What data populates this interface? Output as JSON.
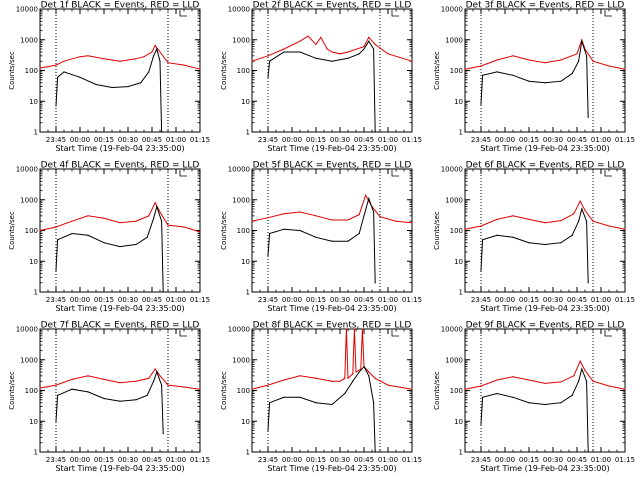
{
  "figure": {
    "background": "#ffffff",
    "colors": {
      "events": "#000000",
      "lld": "#e00000",
      "markers": "#000000"
    }
  },
  "chart_data": [
    {
      "type": "line",
      "title": "Det 1f BLACK = Events, RED = LLD",
      "xlabel": "Start Time (19-Feb-04 23:35:00)",
      "ylabel": "Counts/sec",
      "yscale": "log",
      "ylim": [
        1,
        10000
      ],
      "xlim": [
        "23:35",
        "01:15"
      ],
      "xticks": [
        "23:45",
        "00:00",
        "00:15",
        "00:30",
        "00:45",
        "01:00",
        "01:15"
      ],
      "yticks": [
        "1",
        "10",
        "100",
        "1000",
        "10000"
      ],
      "vlines": [
        "23:45",
        "00:55"
      ],
      "series": [
        {
          "name": "LLD",
          "color": "#e00000",
          "x": [
            "23:35",
            "23:45",
            "23:50",
            "00:00",
            "00:05",
            "00:15",
            "00:25",
            "00:35",
            "00:40",
            "00:45",
            "00:47",
            "00:50",
            "00:55",
            "01:05",
            "01:15"
          ],
          "y": [
            120,
            150,
            200,
            280,
            300,
            240,
            200,
            240,
            280,
            400,
            650,
            400,
            180,
            150,
            110
          ]
        },
        {
          "name": "Events",
          "color": "#000000",
          "x": [
            "23:45",
            "23:46",
            "23:50",
            "00:00",
            "00:10",
            "00:20",
            "00:30",
            "00:38",
            "00:43",
            "00:46",
            "00:48",
            "00:50",
            "00:51"
          ],
          "y": [
            7,
            60,
            90,
            60,
            35,
            28,
            30,
            40,
            90,
            300,
            500,
            200,
            1
          ]
        }
      ]
    },
    {
      "type": "line",
      "title": "Det 2f BLACK = Events, RED = LLD",
      "xlabel": "Start Time (19-Feb-04 23:35:00)",
      "ylabel": "Counts/sec",
      "yscale": "log",
      "ylim": [
        1,
        10000
      ],
      "xlim": [
        "23:35",
        "01:15"
      ],
      "xticks": [
        "23:45",
        "00:00",
        "00:15",
        "00:30",
        "00:45",
        "01:00",
        "01:15"
      ],
      "yticks": [
        "1",
        "10",
        "100",
        "1000",
        "10000"
      ],
      "vlines": [
        "23:45",
        "00:55"
      ],
      "series": [
        {
          "name": "LLD",
          "color": "#e00000",
          "x": [
            "23:35",
            "23:45",
            "23:55",
            "00:05",
            "00:10",
            "00:15",
            "00:18",
            "00:22",
            "00:25",
            "00:30",
            "00:35",
            "00:45",
            "00:48",
            "00:52",
            "01:00",
            "01:15"
          ],
          "y": [
            200,
            300,
            500,
            900,
            1300,
            700,
            1200,
            500,
            400,
            350,
            400,
            600,
            1200,
            700,
            350,
            200
          ]
        },
        {
          "name": "Events",
          "color": "#000000",
          "x": [
            "23:45",
            "23:46",
            "23:55",
            "00:05",
            "00:15",
            "00:25",
            "00:35",
            "00:42",
            "00:45",
            "00:48",
            "00:51",
            "00:52"
          ],
          "y": [
            60,
            200,
            400,
            400,
            250,
            200,
            250,
            350,
            500,
            900,
            500,
            1
          ]
        }
      ]
    },
    {
      "type": "line",
      "title": "Det 3f BLACK = Events, RED = LLD",
      "xlabel": "Start Time (19-Feb-04 23:35:00)",
      "ylabel": "Counts/sec",
      "yscale": "log",
      "ylim": [
        1,
        10000
      ],
      "xlim": [
        "23:35",
        "01:15"
      ],
      "xticks": [
        "23:45",
        "00:00",
        "00:15",
        "00:30",
        "00:45",
        "01:00",
        "01:15"
      ],
      "yticks": [
        "1",
        "10",
        "100",
        "1000",
        "10000"
      ],
      "vlines": [
        "23:45",
        "00:55"
      ],
      "series": [
        {
          "name": "LLD",
          "color": "#e00000",
          "x": [
            "23:35",
            "23:45",
            "23:55",
            "00:05",
            "00:15",
            "00:25",
            "00:35",
            "00:45",
            "00:48",
            "00:50",
            "00:55",
            "01:05",
            "01:15"
          ],
          "y": [
            110,
            140,
            220,
            300,
            220,
            180,
            220,
            350,
            1000,
            500,
            200,
            140,
            110
          ]
        },
        {
          "name": "Events",
          "color": "#000000",
          "x": [
            "23:45",
            "23:46",
            "23:55",
            "00:05",
            "00:15",
            "00:25",
            "00:35",
            "00:42",
            "00:46",
            "00:48",
            "00:51",
            "00:52"
          ],
          "y": [
            8,
            70,
            90,
            70,
            45,
            40,
            45,
            80,
            200,
            900,
            300,
            3
          ]
        }
      ]
    },
    {
      "type": "line",
      "title": "Det 4f BLACK = Events, RED = LLD",
      "xlabel": "Start Time (19-Feb-04 23:35:00)",
      "ylabel": "Counts/sec",
      "yscale": "log",
      "ylim": [
        1,
        10000
      ],
      "xlim": [
        "23:35",
        "01:15"
      ],
      "xticks": [
        "23:45",
        "00:00",
        "00:15",
        "00:30",
        "00:45",
        "01:00",
        "01:15"
      ],
      "yticks": [
        "1",
        "10",
        "100",
        "1000",
        "10000"
      ],
      "vlines": [
        "23:45",
        "00:55"
      ],
      "series": [
        {
          "name": "LLD",
          "color": "#e00000",
          "x": [
            "23:35",
            "23:45",
            "23:55",
            "00:05",
            "00:15",
            "00:25",
            "00:35",
            "00:43",
            "00:47",
            "00:50",
            "00:55",
            "01:05",
            "01:15"
          ],
          "y": [
            100,
            130,
            200,
            300,
            250,
            180,
            200,
            300,
            800,
            400,
            150,
            130,
            90
          ]
        },
        {
          "name": "Events",
          "color": "#000000",
          "x": [
            "23:45",
            "23:46",
            "23:55",
            "00:05",
            "00:15",
            "00:25",
            "00:35",
            "00:42",
            "00:46",
            "00:48",
            "00:51",
            "00:52"
          ],
          "y": [
            5,
            50,
            80,
            70,
            40,
            30,
            35,
            60,
            250,
            600,
            200,
            1
          ]
        }
      ]
    },
    {
      "type": "line",
      "title": "Det 5f BLACK = Events, RED = LLD",
      "xlabel": "Start Time (19-Feb-04 23:35:00)",
      "ylabel": "Counts/sec",
      "yscale": "log",
      "ylim": [
        1,
        10000
      ],
      "xlim": [
        "23:35",
        "01:15"
      ],
      "xticks": [
        "23:45",
        "00:00",
        "00:15",
        "00:30",
        "00:45",
        "01:00",
        "01:15"
      ],
      "yticks": [
        "1",
        "10",
        "100",
        "1000",
        "10000"
      ],
      "vlines": [
        "23:45",
        "00:55"
      ],
      "series": [
        {
          "name": "LLD",
          "color": "#e00000",
          "x": [
            "23:35",
            "23:45",
            "23:55",
            "00:05",
            "00:15",
            "00:25",
            "00:35",
            "00:42",
            "00:46",
            "00:50",
            "00:55",
            "01:05",
            "01:15"
          ],
          "y": [
            200,
            260,
            350,
            400,
            300,
            220,
            220,
            330,
            1400,
            600,
            280,
            200,
            180
          ]
        },
        {
          "name": "Events",
          "color": "#000000",
          "x": [
            "23:45",
            "23:46",
            "23:55",
            "00:05",
            "00:15",
            "00:25",
            "00:35",
            "00:42",
            "00:45",
            "00:48",
            "00:51",
            "00:52"
          ],
          "y": [
            15,
            80,
            110,
            100,
            60,
            45,
            45,
            80,
            300,
            1100,
            400,
            2
          ]
        }
      ]
    },
    {
      "type": "line",
      "title": "Det 6f BLACK = Events, RED = LLD",
      "xlabel": "Start Time (19-Feb-04 23:35:00)",
      "ylabel": "Counts/sec",
      "yscale": "log",
      "ylim": [
        1,
        10000
      ],
      "xlim": [
        "23:35",
        "01:15"
      ],
      "xticks": [
        "23:45",
        "00:00",
        "00:15",
        "00:30",
        "00:45",
        "01:00",
        "01:15"
      ],
      "yticks": [
        "1",
        "10",
        "100",
        "1000",
        "10000"
      ],
      "vlines": [
        "23:45",
        "00:55"
      ],
      "series": [
        {
          "name": "LLD",
          "color": "#e00000",
          "x": [
            "23:35",
            "23:45",
            "23:55",
            "00:05",
            "00:15",
            "00:25",
            "00:35",
            "00:43",
            "00:47",
            "00:50",
            "00:55",
            "01:05",
            "01:15"
          ],
          "y": [
            110,
            140,
            230,
            300,
            230,
            180,
            210,
            350,
            900,
            450,
            200,
            140,
            110
          ]
        },
        {
          "name": "Events",
          "color": "#000000",
          "x": [
            "23:45",
            "23:46",
            "23:55",
            "00:05",
            "00:15",
            "00:25",
            "00:35",
            "00:42",
            "00:46",
            "00:48",
            "00:51",
            "00:52"
          ],
          "y": [
            5,
            50,
            70,
            60,
            40,
            35,
            40,
            70,
            200,
            500,
            200,
            2
          ]
        }
      ]
    },
    {
      "type": "line",
      "title": "Det 7f BLACK = Events, RED = LLD",
      "xlabel": "Start Time (19-Feb-04 23:35:00)",
      "ylabel": "Counts/sec",
      "yscale": "log",
      "ylim": [
        1,
        10000
      ],
      "xlim": [
        "23:35",
        "01:15"
      ],
      "xticks": [
        "23:45",
        "00:00",
        "00:15",
        "00:30",
        "00:45",
        "01:00",
        "01:15"
      ],
      "yticks": [
        "1",
        "10",
        "100",
        "1000",
        "10000"
      ],
      "vlines": [
        "23:45",
        "00:55"
      ],
      "series": [
        {
          "name": "LLD",
          "color": "#e00000",
          "x": [
            "23:35",
            "23:45",
            "23:55",
            "00:05",
            "00:15",
            "00:25",
            "00:35",
            "00:43",
            "00:47",
            "00:50",
            "00:55",
            "01:05",
            "01:15"
          ],
          "y": [
            120,
            150,
            230,
            300,
            230,
            180,
            200,
            250,
            500,
            300,
            150,
            130,
            110
          ]
        },
        {
          "name": "Events",
          "color": "#000000",
          "x": [
            "23:45",
            "23:46",
            "23:55",
            "00:05",
            "00:15",
            "00:25",
            "00:35",
            "00:42",
            "00:46",
            "00:48",
            "00:51",
            "00:52"
          ],
          "y": [
            10,
            70,
            110,
            90,
            55,
            45,
            50,
            70,
            200,
            400,
            150,
            4
          ]
        }
      ]
    },
    {
      "type": "line",
      "title": "Det 8f BLACK = Events, RED = LLD",
      "xlabel": "Start Time (19-Feb-04 23:35:00)",
      "ylabel": "Counts/sec",
      "yscale": "log",
      "ylim": [
        1,
        10000
      ],
      "xlim": [
        "23:35",
        "01:15"
      ],
      "xticks": [
        "23:45",
        "00:00",
        "00:15",
        "00:30",
        "00:45",
        "01:00",
        "01:15"
      ],
      "yticks": [
        "1",
        "10",
        "100",
        "1000",
        "10000"
      ],
      "vlines": [
        "23:45",
        "00:55"
      ],
      "series": [
        {
          "name": "LLD",
          "color": "#e00000",
          "x": [
            "23:35",
            "23:45",
            "23:55",
            "00:05",
            "00:15",
            "00:25",
            "00:30",
            "00:33",
            "00:34",
            "00:35",
            "00:38",
            "00:39",
            "00:40",
            "00:43",
            "00:44",
            "00:45",
            "00:48",
            "00:52",
            "01:00",
            "01:15"
          ],
          "y": [
            110,
            150,
            220,
            300,
            250,
            200,
            200,
            250,
            10000,
            250,
            350,
            10000,
            400,
            500,
            10000,
            600,
            400,
            250,
            150,
            110
          ]
        },
        {
          "name": "Events",
          "color": "#000000",
          "x": [
            "23:45",
            "23:46",
            "23:55",
            "00:05",
            "00:15",
            "00:25",
            "00:33",
            "00:38",
            "00:42",
            "00:45",
            "00:48",
            "00:51",
            "00:52"
          ],
          "y": [
            5,
            40,
            60,
            60,
            40,
            35,
            80,
            200,
            400,
            600,
            300,
            40,
            1
          ]
        }
      ]
    },
    {
      "type": "line",
      "title": "Det 9f BLACK = Events, RED = LLD",
      "xlabel": "Start Time (19-Feb-04 23:35:00)",
      "ylabel": "Counts/sec",
      "yscale": "log",
      "ylim": [
        1,
        10000
      ],
      "xlim": [
        "23:35",
        "01:15"
      ],
      "xticks": [
        "23:45",
        "00:00",
        "00:15",
        "00:30",
        "00:45",
        "01:00",
        "01:15"
      ],
      "yticks": [
        "1",
        "10",
        "100",
        "1000",
        "10000"
      ],
      "vlines": [
        "23:45",
        "00:55"
      ],
      "series": [
        {
          "name": "LLD",
          "color": "#e00000",
          "x": [
            "23:35",
            "23:45",
            "23:55",
            "00:05",
            "00:15",
            "00:25",
            "00:35",
            "00:43",
            "00:47",
            "00:50",
            "00:55",
            "01:05",
            "01:15"
          ],
          "y": [
            110,
            140,
            220,
            280,
            220,
            170,
            190,
            300,
            900,
            450,
            200,
            140,
            110
          ]
        },
        {
          "name": "Events",
          "color": "#000000",
          "x": [
            "23:45",
            "23:46",
            "23:55",
            "00:05",
            "00:15",
            "00:25",
            "00:35",
            "00:42",
            "00:46",
            "00:48",
            "00:51",
            "00:52"
          ],
          "y": [
            8,
            60,
            80,
            60,
            40,
            35,
            40,
            70,
            200,
            500,
            200,
            1
          ]
        }
      ]
    }
  ]
}
